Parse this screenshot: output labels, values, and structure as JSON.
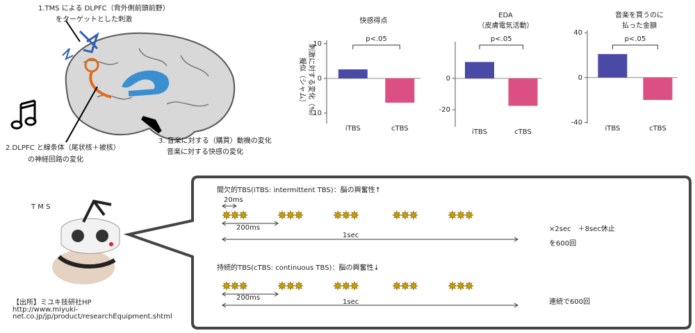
{
  "chart_data": [
    {
      "type": "bar",
      "title": "快感得点",
      "ylabel": [
        "擬似（シャム）",
        "刺激に対する変化（%）"
      ],
      "annotation": "p<.05",
      "categories": [
        "iTBS",
        "cTBS"
      ],
      "values": [
        2.6,
        -7
      ],
      "colors": [
        "#4a4aa6",
        "#dc4f82"
      ],
      "ylim": [
        -13,
        11
      ],
      "yticks": [
        -10,
        0,
        10
      ]
    },
    {
      "type": "bar",
      "title": [
        "EDA",
        "（皮膚電気活動）"
      ],
      "annotation": "p<.05",
      "categories": [
        "iTBS",
        "cTBS"
      ],
      "values": [
        10.5,
        -17.5
      ],
      "colors": [
        "#4a4aa6",
        "#dc4f82"
      ],
      "ylim": [
        -31,
        23.5
      ],
      "yticks": [
        -20,
        0
      ]
    },
    {
      "type": "bar",
      "title": [
        "音楽を買うのに",
        "払った金額"
      ],
      "annotation": "p<.05",
      "categories": [
        "iTBS",
        "cTBS"
      ],
      "values": [
        21,
        -20
      ],
      "colors": [
        "#4a4aa6",
        "#dc4f82"
      ],
      "ylim": [
        -41,
        42
      ],
      "yticks": [
        -40,
        0,
        40
      ]
    }
  ],
  "brain": {
    "label1": [
      "1.TMS による DLPFC（背外側前頭前野）",
      "をターゲットとした刺激"
    ],
    "label2": [
      "2.DLPFC と線条体（尾状核＋被核）",
      "の神経回路の変化"
    ],
    "label3": [
      "3. 音楽に対する（購買）動機の変化",
      "音楽に対する快感の変化"
    ]
  },
  "tms": {
    "title": "T M S",
    "source": [
      "【出所】ミユキ技研社HP",
      "http://www.miyuki-",
      "net.co.jp/jp/product/researchEquipment.shtml"
    ]
  },
  "tbs": {
    "itbs": {
      "title": "間欠的TBS(iTBS: intermittent TBS)：脳の興奮性↑",
      "burst": "20ms",
      "train": "200ms",
      "span": "1sec",
      "repeat": [
        "×2sec　＋8sec休止",
        "を600回"
      ]
    },
    "ctbs": {
      "title": "持続的TBS(cTBS: continuous TBS)：脳の興奮性↓",
      "train": "200ms",
      "span": "1sec",
      "repeat": "連続で600回"
    }
  }
}
